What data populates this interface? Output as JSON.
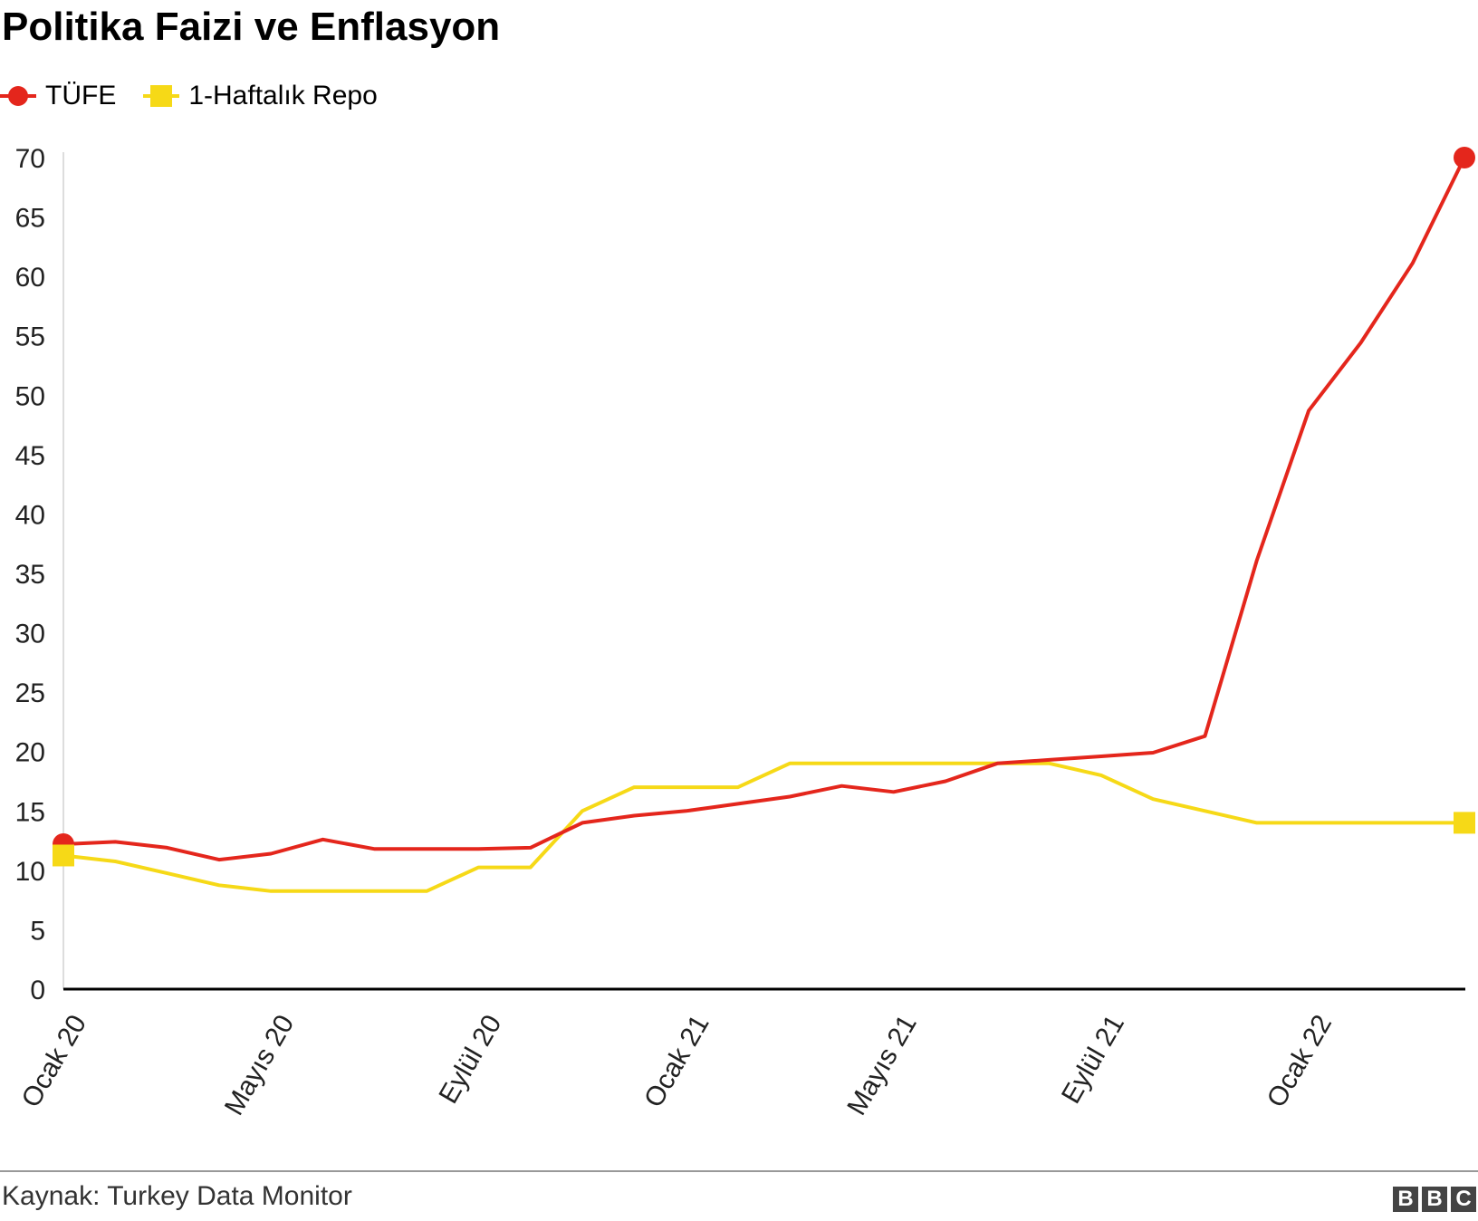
{
  "chart_data": {
    "type": "line",
    "title": "Politika Faizi ve Enflasyon",
    "xlabel": "",
    "ylabel": "",
    "ylim": [
      0,
      70
    ],
    "yticks": [
      0,
      5,
      10,
      15,
      20,
      25,
      30,
      35,
      40,
      45,
      50,
      55,
      60,
      65,
      70
    ],
    "grid": false,
    "legend_position": "top-left",
    "x_tick_labels": [
      {
        "index": 0,
        "label": "Ocak 20"
      },
      {
        "index": 4,
        "label": "Mayıs 20"
      },
      {
        "index": 8,
        "label": "Eylül 20"
      },
      {
        "index": 12,
        "label": "Ocak 21"
      },
      {
        "index": 16,
        "label": "Mayıs 21"
      },
      {
        "index": 20,
        "label": "Eylül 21"
      },
      {
        "index": 24,
        "label": "Ocak 22"
      }
    ],
    "x": [
      "Ocak 20",
      "Şubat 20",
      "Mart 20",
      "Nisan 20",
      "Mayıs 20",
      "Haziran 20",
      "Temmuz 20",
      "Ağustos 20",
      "Eylül 20",
      "Ekim 20",
      "Kasım 20",
      "Aralık 20",
      "Ocak 21",
      "Şubat 21",
      "Mart 21",
      "Nisan 21",
      "Mayıs 21",
      "Haziran 21",
      "Temmuz 21",
      "Ağustos 21",
      "Eylül 21",
      "Ekim 21",
      "Kasım 21",
      "Aralık 21",
      "Ocak 22",
      "Şubat 22",
      "Mart 22",
      "Nisan 22"
    ],
    "series": [
      {
        "name": "TÜFE",
        "color": "#e4261c",
        "marker": "circle",
        "values": [
          12.2,
          12.4,
          11.9,
          10.9,
          11.4,
          12.6,
          11.8,
          11.8,
          11.8,
          11.9,
          14.0,
          14.6,
          15.0,
          15.6,
          16.2,
          17.1,
          16.6,
          17.5,
          19.0,
          19.3,
          19.6,
          19.9,
          21.3,
          36.1,
          48.7,
          54.4,
          61.1,
          70.0
        ]
      },
      {
        "name": "1-Haftalık Repo",
        "color": "#f6d917",
        "marker": "square",
        "values": [
          11.25,
          10.75,
          9.75,
          8.75,
          8.25,
          8.25,
          8.25,
          8.25,
          10.25,
          10.25,
          15.0,
          17.0,
          17.0,
          17.0,
          19.0,
          19.0,
          19.0,
          19.0,
          19.0,
          19.0,
          18.0,
          16.0,
          15.0,
          14.0,
          14.0,
          14.0,
          14.0,
          14.0
        ]
      }
    ]
  },
  "footer": {
    "source": "Kaynak: Turkey Data Monitor",
    "logo_letters": [
      "B",
      "B",
      "C"
    ]
  }
}
